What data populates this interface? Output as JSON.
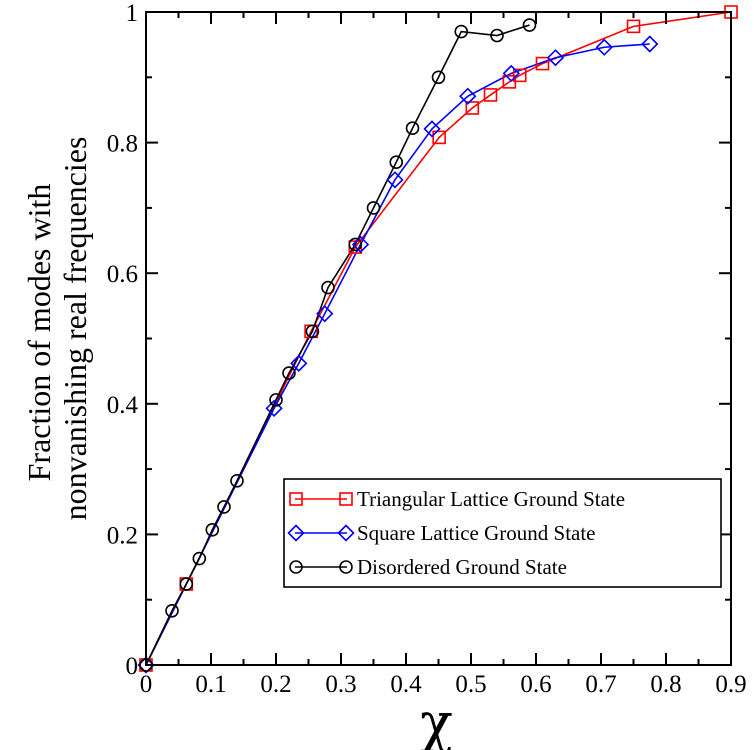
{
  "chart_data": {
    "type": "line",
    "title": "",
    "xlabel": "χ",
    "ylabel": [
      "Fraction of modes with",
      "nonvanishing real frequencies"
    ],
    "xlim": [
      0,
      0.9
    ],
    "ylim": [
      0,
      1
    ],
    "x_ticks": [
      0,
      0.1,
      0.2,
      0.3,
      0.4,
      0.5,
      0.6,
      0.7,
      0.8,
      0.9
    ],
    "x_tick_labels": [
      "0",
      "0.1",
      "0.2",
      "0.3",
      "0.4",
      "0.5",
      "0.6",
      "0.7",
      "0.8",
      "0.9"
    ],
    "y_ticks": [
      0,
      0.2,
      0.4,
      0.6,
      0.8,
      1
    ],
    "y_tick_labels": [
      "0",
      "0.2",
      "0.4",
      "0.6",
      "0.8",
      "1"
    ],
    "grid": false,
    "legend_position": "bottom-right",
    "series": [
      {
        "name": "Triangular Lattice Ground State",
        "color": "#ff0000",
        "marker": "square",
        "x": [
          0,
          0.062,
          0.254,
          0.322,
          0.451,
          0.502,
          0.53,
          0.559,
          0.575,
          0.61,
          0.75,
          0.9
        ],
        "y": [
          0,
          0.124,
          0.511,
          0.64,
          0.808,
          0.853,
          0.873,
          0.893,
          0.903,
          0.921,
          0.978,
          1.0
        ]
      },
      {
        "name": "Square Lattice Ground State",
        "color": "#0000ff",
        "marker": "diamond",
        "x": [
          0,
          0.197,
          0.235,
          0.275,
          0.33,
          0.383,
          0.44,
          0.495,
          0.562,
          0.63,
          0.705,
          0.775
        ],
        "y": [
          0,
          0.393,
          0.462,
          0.538,
          0.644,
          0.743,
          0.821,
          0.871,
          0.906,
          0.93,
          0.946,
          0.951
        ]
      },
      {
        "name": "Disordered Ground State",
        "color": "#000000",
        "marker": "circle",
        "x": [
          0,
          0.04,
          0.062,
          0.082,
          0.102,
          0.12,
          0.14,
          0.2,
          0.22,
          0.256,
          0.28,
          0.322,
          0.35,
          0.385,
          0.41,
          0.45,
          0.485,
          0.54,
          0.59
        ],
        "y": [
          0,
          0.083,
          0.124,
          0.163,
          0.207,
          0.242,
          0.282,
          0.406,
          0.447,
          0.511,
          0.578,
          0.644,
          0.7,
          0.77,
          0.822,
          0.9,
          0.97,
          0.964,
          0.98
        ]
      }
    ]
  }
}
